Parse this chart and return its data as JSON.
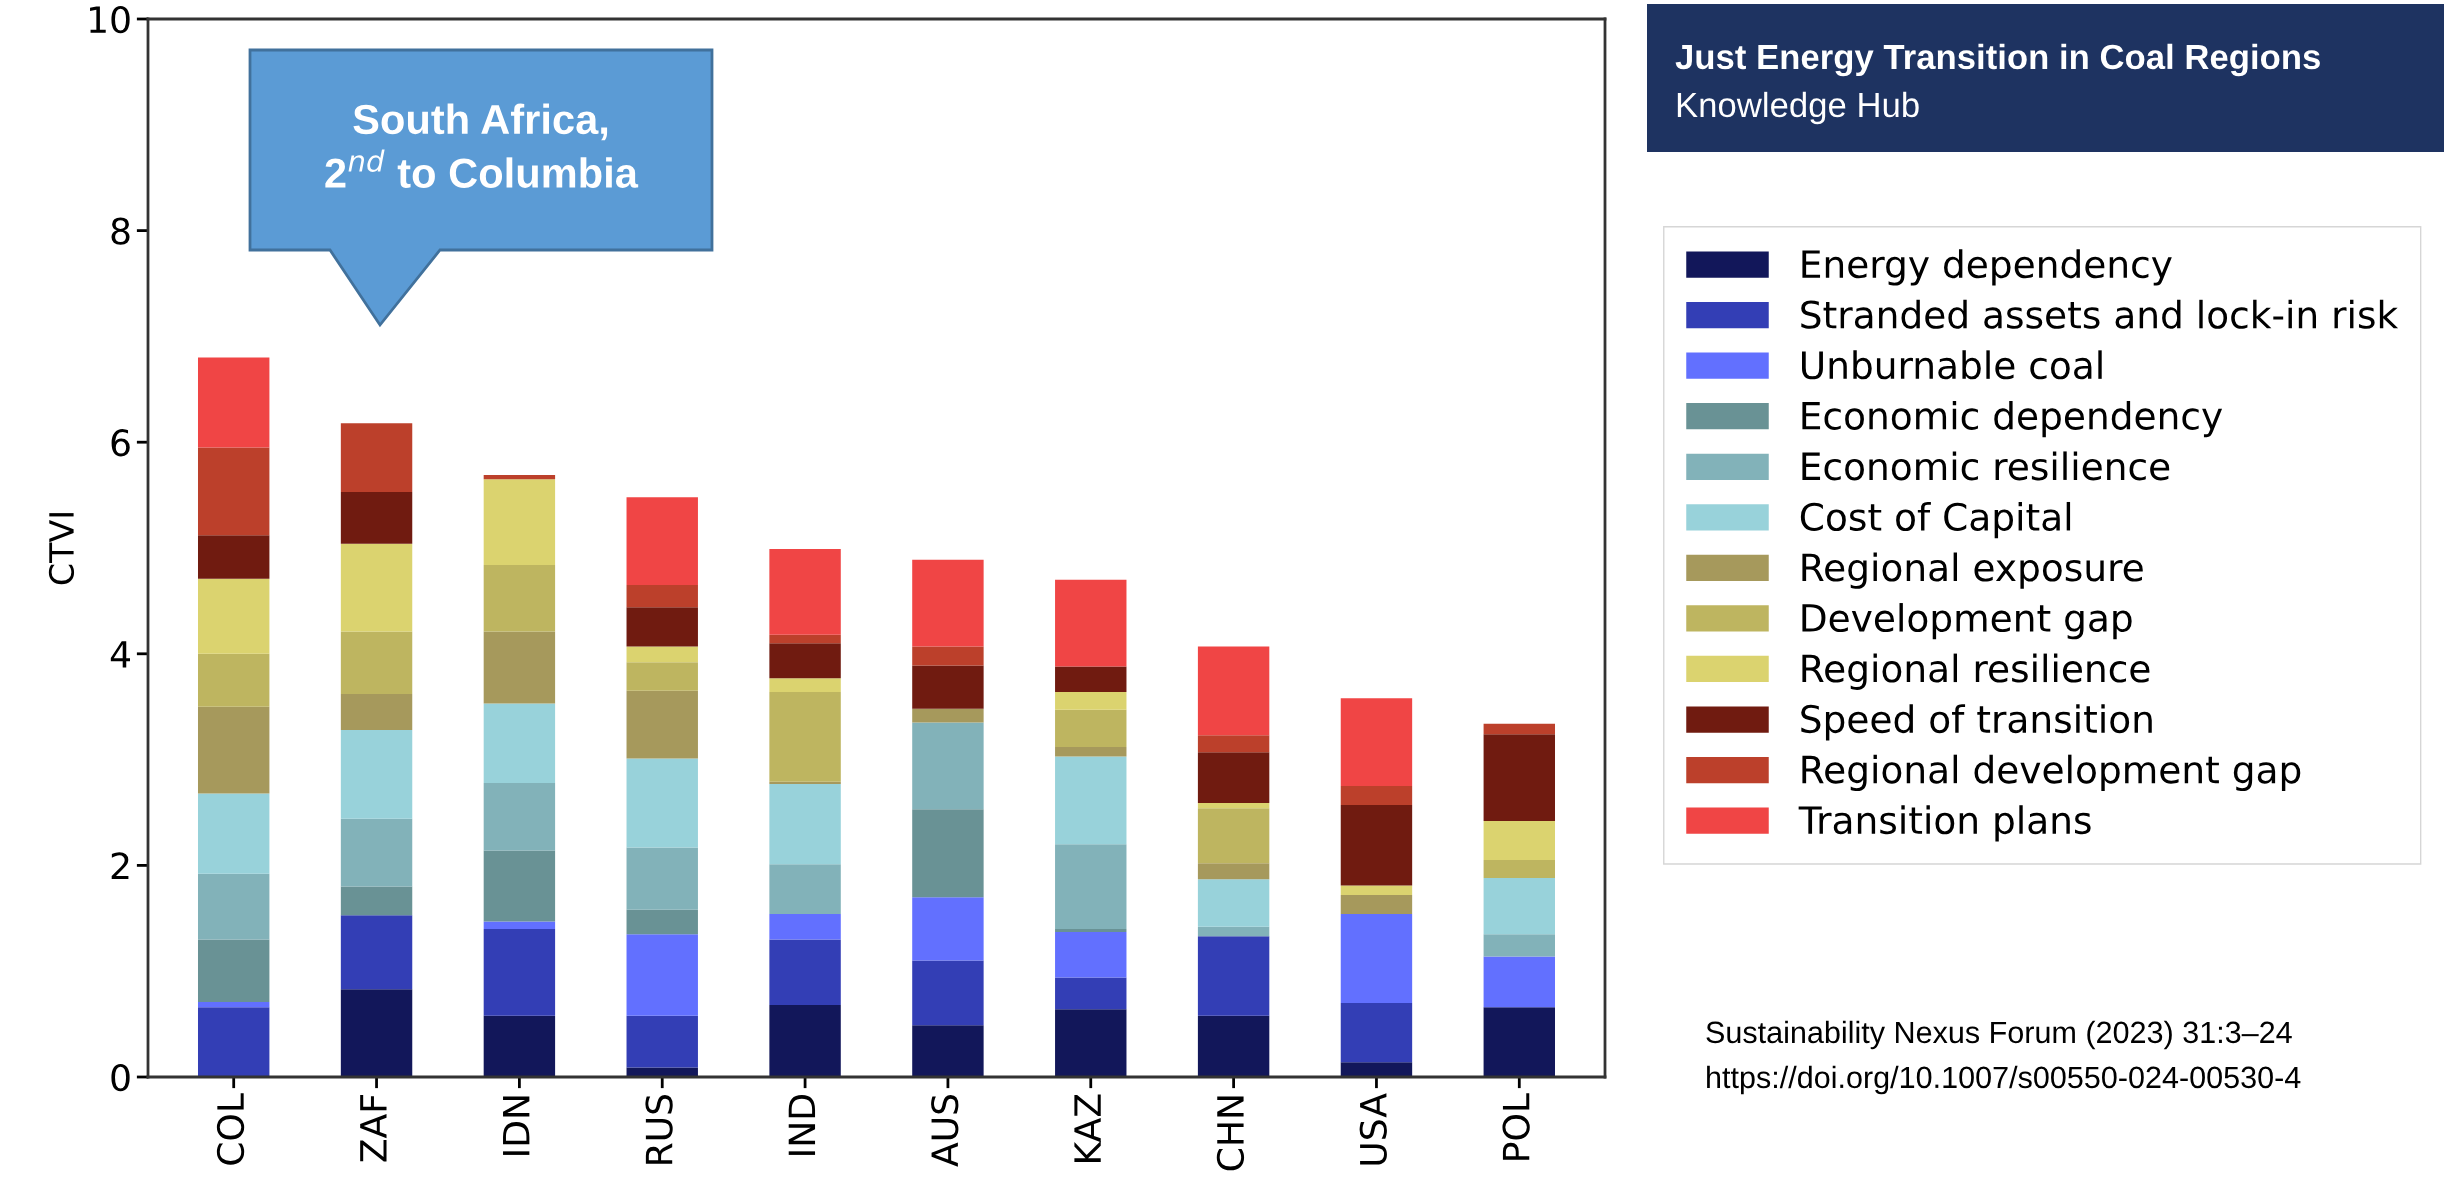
{
  "chart_data": {
    "type": "bar",
    "stacked": true,
    "title": "Just Energy Transition in Coal Regions",
    "subtitle": "Knowledge Hub",
    "ylabel": "CTVI",
    "categories": [
      "COL",
      "ZAF",
      "IDN",
      "RUS",
      "IND",
      "AUS",
      "KAZ",
      "CHN",
      "USA",
      "POL"
    ],
    "ylim": [
      0,
      10
    ],
    "yticks": [
      0,
      2,
      4,
      6,
      8,
      10
    ],
    "grid": false,
    "legend": "right",
    "series": [
      {
        "name": "Energy dependency",
        "color": "#12175a",
        "values": [
          0,
          0.83,
          0.58,
          0.09,
          0.68,
          0.49,
          0.64,
          0.58,
          0.14,
          0.66
        ]
      },
      {
        "name": "Stranded assets and lock-in risk",
        "color": "#333eb5",
        "values": [
          0.66,
          0.7,
          0.82,
          0.49,
          0.62,
          0.61,
          0.3,
          0.75,
          0.56,
          0
        ]
      },
      {
        "name": "Unburnable coal",
        "color": "#6270ff",
        "values": [
          0.05,
          0,
          0.07,
          0.77,
          0.24,
          0.6,
          0.43,
          0,
          0.84,
          0.48
        ]
      },
      {
        "name": "Economic dependency",
        "color": "#699295",
        "values": [
          0.59,
          0.27,
          0.67,
          0.23,
          0,
          0.83,
          0.03,
          0,
          0,
          0
        ]
      },
      {
        "name": "Economic resilience",
        "color": "#82b2b9",
        "values": [
          0.62,
          0.64,
          0.64,
          0.59,
          0.47,
          0.82,
          0.8,
          0.09,
          0,
          0.21
        ]
      },
      {
        "name": "Cost of Capital",
        "color": "#98d2da",
        "values": [
          0.76,
          0.84,
          0.75,
          0.84,
          0.76,
          0,
          0.83,
          0.45,
          0,
          0.53
        ]
      },
      {
        "name": "Regional exposure",
        "color": "#a6995c",
        "values": [
          0.82,
          0.34,
          0.68,
          0.64,
          0.02,
          0.13,
          0.09,
          0.15,
          0.18,
          0
        ]
      },
      {
        "name": "Development gap",
        "color": "#beb560",
        "values": [
          0.5,
          0.59,
          0.63,
          0.27,
          0.85,
          0,
          0.35,
          0.52,
          0,
          0.17
        ]
      },
      {
        "name": "Regional resilience",
        "color": "#dbd36f",
        "values": [
          0.71,
          0.83,
          0.81,
          0.15,
          0.13,
          0,
          0.17,
          0.05,
          0.09,
          0.37
        ]
      },
      {
        "name": "Speed of transition",
        "color": "#701b10",
        "values": [
          0.41,
          0.49,
          0,
          0.37,
          0.33,
          0.41,
          0.24,
          0.48,
          0.76,
          0.82
        ]
      },
      {
        "name": "Regional development gap",
        "color": "#bc402b",
        "values": [
          0.83,
          0.65,
          0.04,
          0.21,
          0.08,
          0.18,
          0,
          0.16,
          0.18,
          0.1
        ]
      },
      {
        "name": "Transition plans",
        "color": "#f04545",
        "values": [
          0.85,
          0,
          0,
          0.83,
          0.81,
          0.82,
          0.82,
          0.84,
          0.83,
          0
        ]
      }
    ],
    "annotations": [
      "South Africa,\n2$^{nd}$ to Columbia",
      "Sustainability Nexus Forum (2023) 31:3–24",
      "https://doi.org/10.1007/s00550-024-00530-4"
    ]
  }
}
